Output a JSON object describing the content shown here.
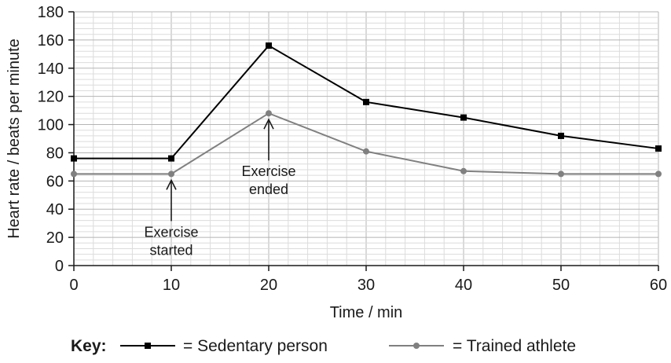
{
  "chart_data": {
    "type": "line",
    "xlabel": "Time / min",
    "ylabel": "Heart  rate / beats per minute",
    "xlim": [
      0,
      60
    ],
    "ylim": [
      0,
      180
    ],
    "x_ticks": [
      "0",
      "10",
      "20",
      "30",
      "40",
      "50",
      "60"
    ],
    "y_ticks": [
      "0",
      "20",
      "40",
      "60",
      "80",
      "100",
      "120",
      "140",
      "160",
      "180"
    ],
    "grid": true,
    "x": [
      0,
      10,
      20,
      30,
      40,
      50,
      60
    ],
    "series": [
      {
        "name": "Sedentary person",
        "marker": "square",
        "color": "#000000",
        "values": [
          76,
          76,
          156,
          116,
          105,
          92,
          83
        ]
      },
      {
        "name": "Trained athlete",
        "marker": "circle",
        "color": "#808080",
        "values": [
          65,
          65,
          108,
          81,
          67,
          65,
          65
        ]
      }
    ],
    "annotations": [
      {
        "text_lines": [
          "Exercise",
          "started"
        ],
        "x": 10,
        "y": 65,
        "arrow": "up"
      },
      {
        "text_lines": [
          "Exercise",
          "ended"
        ],
        "x": 20,
        "y": 108,
        "arrow": "up"
      }
    ],
    "legend": {
      "position": "bottom",
      "title": "Key:",
      "items": [
        "= Sedentary person",
        "= Trained athlete"
      ]
    }
  }
}
